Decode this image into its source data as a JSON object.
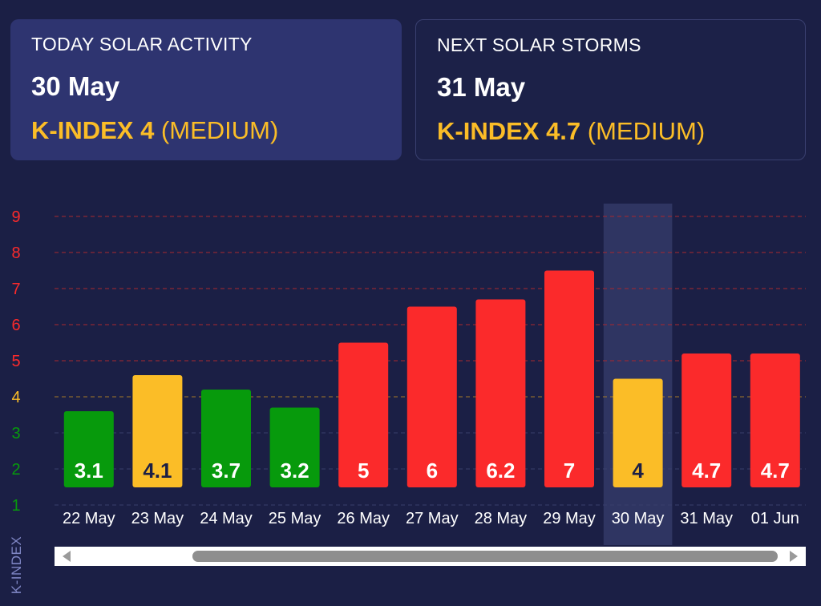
{
  "cards": {
    "today": {
      "label": "TODAY SOLAR ACTIVITY",
      "date": "30 May",
      "k_value": "K-INDEX 4",
      "level": " (MEDIUM)"
    },
    "next": {
      "label": "NEXT SOLAR STORMS",
      "date": "31 May",
      "k_value": "K-INDEX 4.7",
      "level": " (MEDIUM)"
    }
  },
  "chart_data": {
    "type": "bar",
    "categories": [
      "22 May",
      "23 May",
      "24 May",
      "25 May",
      "26 May",
      "27 May",
      "28 May",
      "29 May",
      "30 May",
      "31 May",
      "01 Jun"
    ],
    "values": [
      3.1,
      4.1,
      3.7,
      3.2,
      5,
      6,
      6.2,
      7,
      4,
      4.7,
      4.7
    ],
    "ylabel": "K-INDEX",
    "ylim": [
      1,
      9
    ],
    "yticks": [
      1,
      2,
      3,
      4,
      5,
      6,
      7,
      8,
      9
    ],
    "highlighted": "30 May",
    "colors": {
      "low": "#079a0c",
      "medium": "#fbbd27",
      "high": "#fb2a2b",
      "gridline_high": "#a8282f",
      "gridline_medium": "#a57a28",
      "gridline_low": "#3a3f6b",
      "highlight_band": "#2f3562"
    }
  },
  "scrollbar": {
    "left_icon": "triangle-left-icon",
    "right_icon": "triangle-right-icon"
  }
}
